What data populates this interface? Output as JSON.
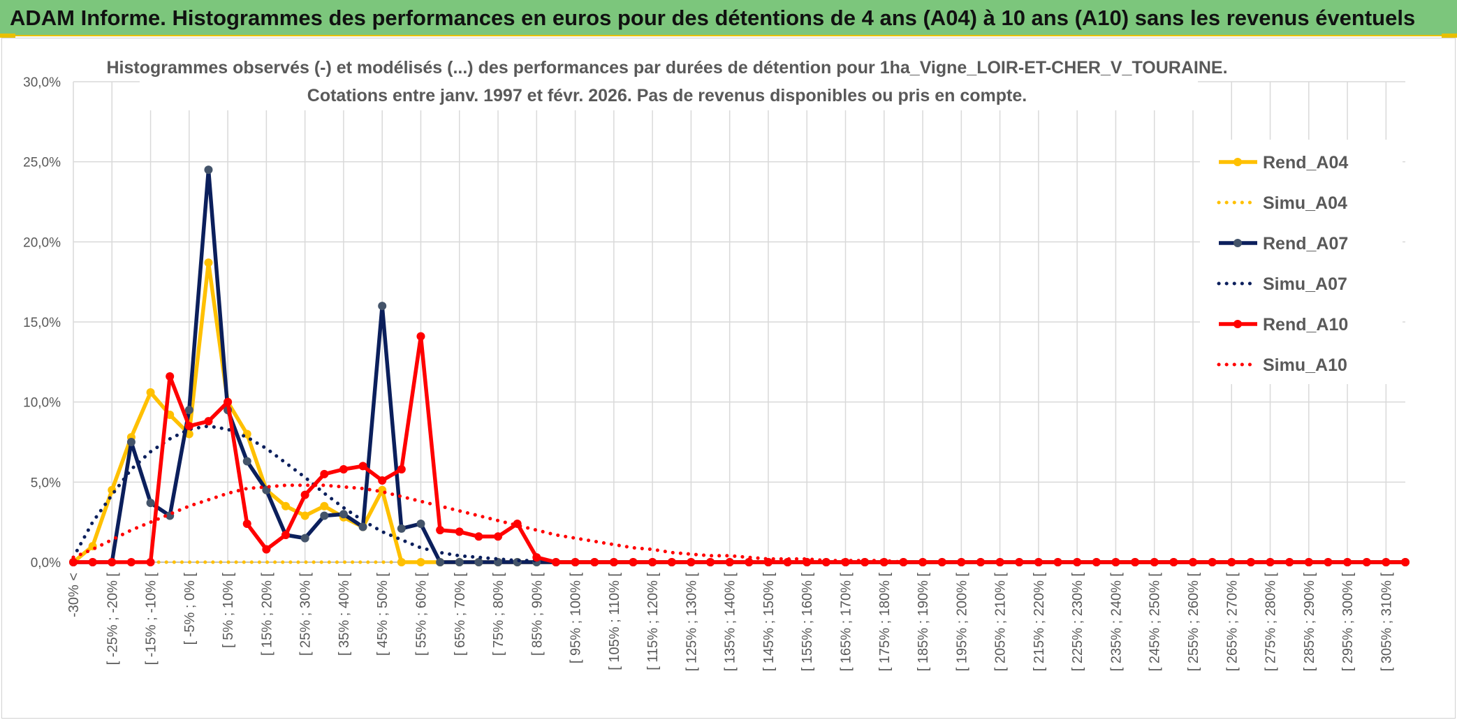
{
  "header": {
    "title": "ADAM Informe. Histogrammes des performances en euros pour des détentions de 4 ans (A04) à 10 ans (A10) sans les revenus éventuels"
  },
  "colors": {
    "header_bg": "#7cc67c",
    "accent": "#e8c000",
    "rend_a04": "#ffc000",
    "rend_a07": "#0b1f5c",
    "rend_a10": "#ff0000"
  },
  "chart_data": {
    "type": "line",
    "title": "Histogrammes observés (-) et modélisés (...) des performances par durées de détention pour 1ha_Vigne_LOIR-ET-CHER_V_TOURAINE.",
    "subtitle": "Cotations entre janv. 1997 et févr. 2026. Pas de revenus disponibles ou pris en compte.",
    "ylim": [
      0,
      0.3
    ],
    "yticks": [
      "0,0%",
      "5,0%",
      "10,0%",
      "15,0%",
      "20,0%",
      "25,0%",
      "30,0%"
    ],
    "legend_position": "right",
    "grid": true,
    "x_tick_labels": [
      "-30% <",
      "[ -25% ; -20% [",
      "[ -15% ; -10% [",
      "[ -5% ; 0% [",
      "[ 5% ; 10% [",
      "[ 15% ; 20% [",
      "[ 25% ; 30% [",
      "[ 35% ; 40% [",
      "[ 45% ; 50% [",
      "[ 55% ; 60% [",
      "[ 65% ; 70% [",
      "[ 75% ; 80% [",
      "[ 85% ; 90% [",
      "[ 95% ; 100% [",
      "[ 105% ; 110% [",
      "[ 115% ; 120% [",
      "[ 125% ; 130% [",
      "[ 135% ; 140% [",
      "[ 145% ; 150% [",
      "[ 155% ; 160% [",
      "[ 165% ; 170% [",
      "[ 175% ; 180% [",
      "[ 185% ; 190% [",
      "[ 195% ; 200% [",
      "[ 205% ; 210% [",
      "[ 215% ; 220% [",
      "[ 225% ; 230% [",
      "[ 235% ; 240% [",
      "[ 245% ; 250% [",
      "[ 255% ; 260% [",
      "[ 265% ; 270% [",
      "[ 275% ; 280% [",
      "[ 285% ; 290% [",
      "[ 295% ; 300% [",
      "[ 305% ; 310% ["
    ],
    "category_count": 70,
    "series": [
      {
        "name": "Rend_A04",
        "style": "solid",
        "color": "#ffc000",
        "markers": true,
        "values": [
          0.0,
          0.01,
          0.045,
          0.078,
          0.106,
          0.092,
          0.08,
          0.187,
          0.1,
          0.08,
          0.045,
          0.035,
          0.029,
          0.035,
          0.028,
          0.022,
          0.045,
          0.0,
          0.0,
          0.0,
          0.0,
          0.0,
          0.0,
          0.0,
          0.0,
          0.0,
          0.0,
          0.0,
          0.0,
          0.0,
          0.0,
          0.0,
          0.0,
          0.0,
          0.0,
          0.0,
          0.0,
          0.0,
          0.0,
          0.0,
          0.0,
          0.0,
          0.0,
          0.0,
          0.0,
          0.0,
          0.0,
          0.0,
          0.0,
          0.0,
          0.0,
          0.0,
          0.0,
          0.0,
          0.0,
          0.0,
          0.0,
          0.0,
          0.0,
          0.0,
          0.0,
          0.0,
          0.0,
          0.0,
          0.0,
          0.0,
          0.0,
          0.0,
          0.0,
          0.0
        ]
      },
      {
        "name": "Simu_A04",
        "style": "dotted",
        "color": "#ffc000",
        "markers": false,
        "values": [
          0.0,
          0.0,
          0.0,
          0.0,
          0.0,
          0.0,
          0.0,
          0.0,
          0.0,
          0.0,
          0.0,
          0.0,
          0.0,
          0.0,
          0.0,
          0.0,
          0.0,
          0.0,
          0.0,
          0.0,
          0.0,
          0.0,
          0.0,
          0.0,
          0.0,
          0.0,
          0.0,
          0.0,
          0.0,
          0.0,
          0.0,
          0.0,
          0.0,
          0.0,
          0.0,
          0.0,
          0.0,
          0.0,
          0.0,
          0.0,
          0.0,
          0.0,
          0.0,
          0.0,
          0.0,
          0.0,
          0.0,
          0.0,
          0.0,
          0.0,
          0.0,
          0.0,
          0.0,
          0.0,
          0.0,
          0.0,
          0.0,
          0.0,
          0.0,
          0.0,
          0.0,
          0.0,
          0.0,
          0.0,
          0.0,
          0.0,
          0.0,
          0.0,
          0.0,
          0.0
        ]
      },
      {
        "name": "Rend_A07",
        "style": "solid",
        "color": "#0b1f5c",
        "markers": true,
        "values": [
          0.0,
          0.0,
          0.0,
          0.075,
          0.037,
          0.029,
          0.095,
          0.245,
          0.095,
          0.063,
          0.045,
          0.017,
          0.015,
          0.029,
          0.03,
          0.022,
          0.16,
          0.021,
          0.024,
          0.0,
          0.0,
          0.0,
          0.0,
          0.0,
          0.0,
          0.0,
          0.0,
          0.0,
          0.0,
          0.0,
          0.0,
          0.0,
          0.0,
          0.0,
          0.0,
          0.0,
          0.0,
          0.0,
          0.0,
          0.0,
          0.0,
          0.0,
          0.0,
          0.0,
          0.0,
          0.0,
          0.0,
          0.0,
          0.0,
          0.0,
          0.0,
          0.0,
          0.0,
          0.0,
          0.0,
          0.0,
          0.0,
          0.0,
          0.0,
          0.0,
          0.0,
          0.0,
          0.0,
          0.0,
          0.0,
          0.0,
          0.0,
          0.0,
          0.0,
          0.0
        ]
      },
      {
        "name": "Simu_A07",
        "style": "dotted",
        "color": "#0b1f5c",
        "markers": false,
        "values": [
          0.003,
          0.025,
          0.042,
          0.058,
          0.069,
          0.077,
          0.083,
          0.085,
          0.083,
          0.078,
          0.071,
          0.062,
          0.053,
          0.043,
          0.034,
          0.026,
          0.019,
          0.014,
          0.009,
          0.006,
          0.004,
          0.003,
          0.002,
          0.001,
          0.001,
          0.0,
          0.0,
          0.0,
          0.0,
          0.0,
          0.0,
          0.0,
          0.0,
          0.0,
          0.0,
          0.0,
          0.0,
          0.0,
          0.0,
          0.0,
          0.0,
          0.0,
          0.0,
          0.0,
          0.0,
          0.0,
          0.0,
          0.0,
          0.0,
          0.0,
          0.0,
          0.0,
          0.0,
          0.0,
          0.0,
          0.0,
          0.0,
          0.0,
          0.0,
          0.0,
          0.0,
          0.0,
          0.0,
          0.0,
          0.0,
          0.0,
          0.0,
          0.0,
          0.0,
          0.0
        ]
      },
      {
        "name": "Rend_A10",
        "style": "solid",
        "color": "#ff0000",
        "markers": true,
        "values": [
          0.0,
          0.0,
          0.0,
          0.0,
          0.0,
          0.116,
          0.085,
          0.088,
          0.1,
          0.024,
          0.008,
          0.017,
          0.042,
          0.055,
          0.058,
          0.06,
          0.051,
          0.058,
          0.141,
          0.02,
          0.019,
          0.016,
          0.016,
          0.024,
          0.003,
          0.0,
          0.0,
          0.0,
          0.0,
          0.0,
          0.0,
          0.0,
          0.0,
          0.0,
          0.0,
          0.0,
          0.0,
          0.0,
          0.0,
          0.0,
          0.0,
          0.0,
          0.0,
          0.0,
          0.0,
          0.0,
          0.0,
          0.0,
          0.0,
          0.0,
          0.0,
          0.0,
          0.0,
          0.0,
          0.0,
          0.0,
          0.0,
          0.0,
          0.0,
          0.0,
          0.0,
          0.0,
          0.0,
          0.0,
          0.0,
          0.0,
          0.0,
          0.0,
          0.0,
          0.0
        ]
      },
      {
        "name": "Simu_A10",
        "style": "dotted",
        "color": "#ff0000",
        "markers": false,
        "values": [
          0.003,
          0.008,
          0.014,
          0.02,
          0.025,
          0.03,
          0.035,
          0.039,
          0.043,
          0.046,
          0.047,
          0.048,
          0.048,
          0.048,
          0.047,
          0.046,
          0.044,
          0.041,
          0.038,
          0.035,
          0.032,
          0.029,
          0.026,
          0.023,
          0.02,
          0.017,
          0.015,
          0.013,
          0.011,
          0.009,
          0.008,
          0.006,
          0.005,
          0.004,
          0.004,
          0.003,
          0.002,
          0.002,
          0.002,
          0.001,
          0.001,
          0.001,
          0.001,
          0.0,
          0.0,
          0.0,
          0.0,
          0.0,
          0.0,
          0.0,
          0.0,
          0.0,
          0.0,
          0.0,
          0.0,
          0.0,
          0.0,
          0.0,
          0.0,
          0.0,
          0.0,
          0.0,
          0.0,
          0.0,
          0.0,
          0.0,
          0.0,
          0.0,
          0.0,
          0.0
        ]
      }
    ]
  }
}
